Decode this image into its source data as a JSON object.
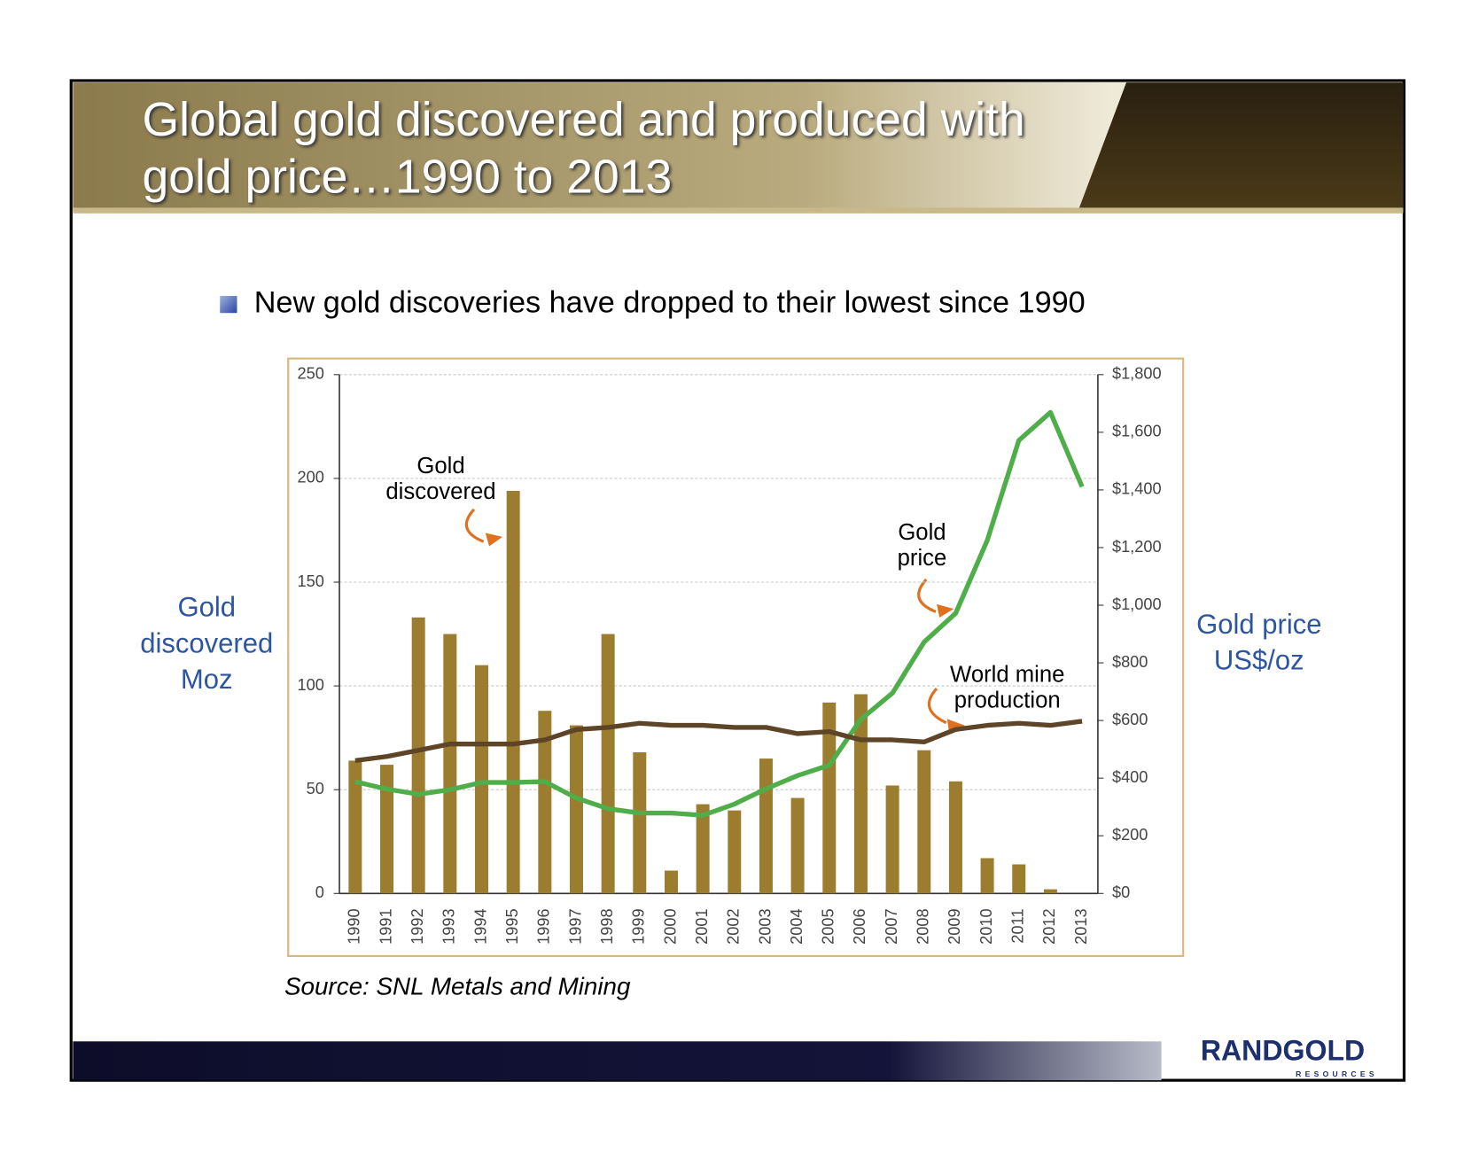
{
  "header": {
    "title": "Global gold discovered and produced with gold price…1990 to 2013"
  },
  "bullet": "New gold discoveries have dropped to their lowest since 1990",
  "chart_data": {
    "type": "bar",
    "categories": [
      "1990",
      "1991",
      "1992",
      "1993",
      "1994",
      "1995",
      "1996",
      "1997",
      "1998",
      "1999",
      "2000",
      "2001",
      "2002",
      "2003",
      "2004",
      "2005",
      "2006",
      "2007",
      "2008",
      "2009",
      "2010",
      "2011",
      "2012",
      "2013"
    ],
    "series": [
      {
        "name": "Gold discovered",
        "type": "bar",
        "color": "#9c7c2e",
        "values": [
          64,
          62,
          133,
          125,
          110,
          194,
          88,
          81,
          125,
          68,
          11,
          43,
          40,
          65,
          46,
          92,
          96,
          52,
          69,
          54,
          17,
          14,
          2,
          0
        ]
      },
      {
        "name": "Gold price",
        "type": "line",
        "axis": "y2",
        "color": "#4fae4a",
        "values": [
          388,
          362,
          344,
          360,
          385,
          385,
          388,
          331,
          294,
          279,
          279,
          271,
          310,
          363,
          409,
          445,
          604,
          695,
          872,
          972,
          1225,
          1572,
          1669,
          1411
        ]
      },
      {
        "name": "World mine production",
        "type": "line",
        "color": "#5e4527",
        "values": [
          64,
          66,
          69,
          72,
          72,
          72,
          74,
          79,
          80,
          82,
          81,
          81,
          80,
          80,
          77,
          78,
          74,
          74,
          73,
          79,
          81,
          82,
          81,
          83
        ]
      }
    ],
    "ylabel": "Gold discovered Moz",
    "y2label": "Gold price US$/oz",
    "ylim": [
      0,
      250
    ],
    "yticks": [
      0,
      50,
      100,
      150,
      200,
      250
    ],
    "y2lim": [
      0,
      1800
    ],
    "y2ticks": [
      {
        "value": 0,
        "label": "$0"
      },
      {
        "value": 200,
        "label": "$200"
      },
      {
        "value": 400,
        "label": "$400"
      },
      {
        "value": 600,
        "label": "$600"
      },
      {
        "value": 800,
        "label": "$800"
      },
      {
        "value": 1000,
        "label": "$1,000"
      },
      {
        "value": 1200,
        "label": "$1,200"
      },
      {
        "value": 1400,
        "label": "$1,400"
      },
      {
        "value": 1600,
        "label": "$1,600"
      },
      {
        "value": 1800,
        "label": "$1,800"
      }
    ],
    "grid": true,
    "source": "Source: SNL Metals and Mining"
  },
  "logo": {
    "name": "RANDGOLD",
    "sub": "RESOURCES"
  }
}
